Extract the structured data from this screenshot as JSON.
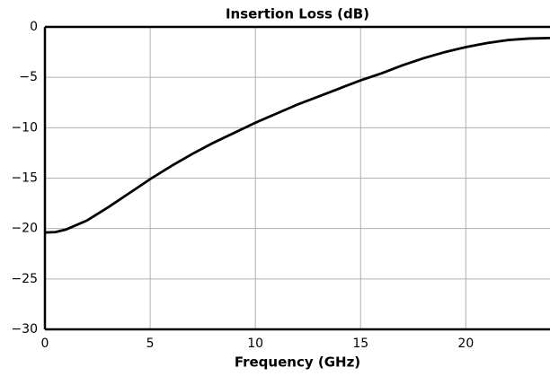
{
  "chart_data": {
    "type": "line",
    "title": "Insertion Loss (dB)",
    "xlabel": "Frequency (GHz)",
    "x": [
      0,
      0.5,
      1,
      2,
      3,
      4,
      5,
      6,
      7,
      8,
      9,
      10,
      11,
      12,
      13,
      14,
      15,
      16,
      17,
      18,
      19,
      20,
      21,
      22,
      23,
      24
    ],
    "series": [
      {
        "color": "#000000",
        "values": [
          -20.4,
          -20.35,
          -20.1,
          -19.2,
          -17.9,
          -16.5,
          -15.1,
          -13.8,
          -12.6,
          -11.5,
          -10.5,
          -9.5,
          -8.6,
          -7.7,
          -6.9,
          -6.1,
          -5.3,
          -4.6,
          -3.8,
          -3.1,
          -2.5,
          -2.0,
          -1.6,
          -1.3,
          -1.15,
          -1.1
        ]
      }
    ],
    "xlim": [
      0,
      24
    ],
    "xticks": [
      0,
      5,
      10,
      15,
      20
    ],
    "ylim": [
      -30,
      0
    ],
    "yticks": [
      {
        "value": -30,
        "label": "−30"
      },
      {
        "value": -25,
        "label": "−25"
      },
      {
        "value": -20,
        "label": "−20"
      },
      {
        "value": -15,
        "label": "−15"
      },
      {
        "value": -10,
        "label": "−10"
      },
      {
        "value": -5,
        "label": "−5"
      },
      0
    ],
    "grid": true
  }
}
